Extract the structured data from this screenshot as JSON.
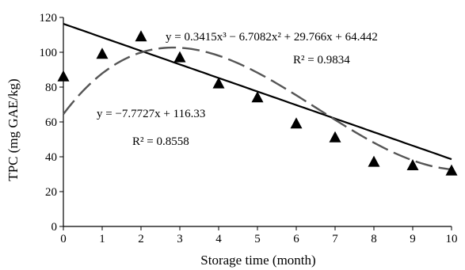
{
  "chart_data": {
    "type": "scatter",
    "title": "",
    "xlabel": "Storage time (month)",
    "ylabel": "TPC (mg GAE/kg)",
    "xlim": [
      0,
      10
    ],
    "ylim": [
      0,
      120
    ],
    "x_ticks": [
      "0",
      "1",
      "2",
      "3",
      "4",
      "5",
      "6",
      "7",
      "8",
      "9",
      "10"
    ],
    "y_ticks": [
      "0",
      "20",
      "40",
      "60",
      "80",
      "100",
      "120"
    ],
    "grid": false,
    "legend": "none",
    "series": [
      {
        "marker": "triangle",
        "x": [
          0,
          1,
          2,
          3,
          4,
          5,
          6,
          7,
          8,
          9,
          10
        ],
        "y": [
          86,
          99,
          109,
          97,
          82,
          74,
          59,
          51,
          37,
          35,
          32
        ]
      }
    ],
    "fits": [
      {
        "kind": "linear",
        "style": "solid",
        "coefficients": [
          -7.7727,
          116.33
        ],
        "equation_text": "y = −7.7727x + 116.33",
        "r2_text": "R² = 0.8558"
      },
      {
        "kind": "cubic",
        "style": "dashed",
        "coefficients": [
          0.3415,
          -6.7082,
          29.766,
          64.442
        ],
        "equation_text": "y = 0.3415x³ − 6.7082x² + 29.766x + 64.442",
        "r2_text": "R² = 0.9834"
      }
    ]
  }
}
